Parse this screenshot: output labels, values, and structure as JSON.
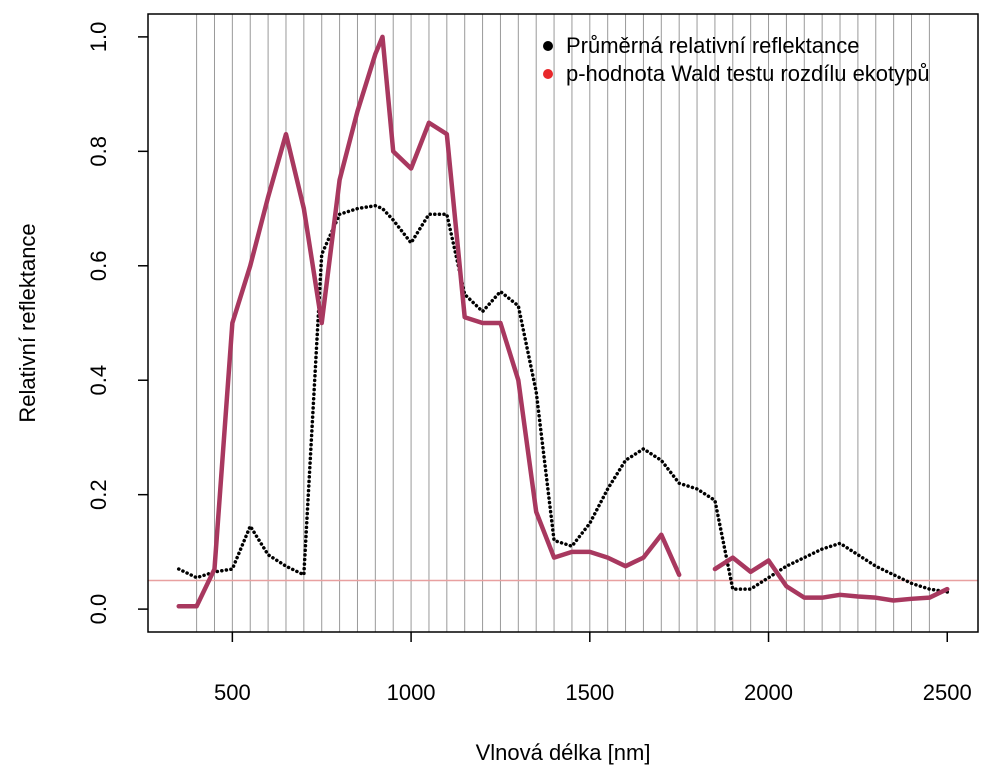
{
  "chart_data": {
    "type": "line",
    "xlabel": "Vlnová délka [nm]",
    "ylabel": "Relativní reflektance",
    "x": [
      350,
      400,
      450,
      500,
      550,
      600,
      650,
      700,
      750,
      800,
      850,
      900,
      920,
      950,
      1000,
      1050,
      1100,
      1150,
      1200,
      1250,
      1300,
      1350,
      1400,
      1450,
      1500,
      1550,
      1600,
      1650,
      1700,
      1750,
      1800,
      1850,
      1900,
      1950,
      2000,
      2050,
      2100,
      2150,
      2200,
      2250,
      2300,
      2350,
      2400,
      2450,
      2500
    ],
    "series": [
      {
        "name": "Průměrná relativní reflektance",
        "color": "#000000",
        "legend_color": "#000000",
        "values": [
          0.07,
          0.055,
          0.065,
          0.07,
          0.145,
          0.095,
          0.075,
          0.06,
          0.62,
          0.69,
          0.7,
          0.705,
          0.7,
          0.68,
          0.64,
          0.69,
          0.69,
          0.55,
          0.52,
          0.555,
          0.53,
          0.38,
          0.12,
          0.11,
          0.15,
          0.21,
          0.26,
          0.28,
          0.26,
          0.22,
          0.21,
          0.19,
          0.035,
          0.035,
          0.055,
          0.075,
          0.09,
          0.105,
          0.115,
          0.095,
          0.075,
          0.06,
          0.045,
          0.035,
          0.03
        ]
      },
      {
        "name": "p-hodnota Wald testu rozdílu ekotypů",
        "color": "#a8385f",
        "legend_color": "#e8282b",
        "values": [
          0.005,
          0.005,
          0.07,
          0.5,
          0.6,
          0.72,
          0.83,
          0.7,
          0.5,
          0.75,
          0.87,
          0.97,
          1.0,
          0.8,
          0.77,
          0.85,
          0.83,
          0.51,
          0.5,
          0.5,
          0.4,
          0.17,
          0.09,
          0.1,
          0.1,
          0.09,
          0.075,
          0.09,
          0.13,
          0.06,
          null,
          0.07,
          0.09,
          0.065,
          0.085,
          0.04,
          0.02,
          0.02,
          0.025,
          0.022,
          0.02,
          0.015,
          0.018,
          0.02,
          0.035
        ]
      }
    ],
    "xlim": [
      264,
      2586
    ],
    "ylim": [
      -0.04,
      1.04
    ],
    "xticks": [
      500,
      1000,
      1500,
      2000,
      2500
    ],
    "yticks": [
      {
        "value": 0,
        "label": "0.0"
      },
      0.2,
      0.4,
      0.6,
      0.8,
      {
        "value": 1,
        "label": "1.0"
      }
    ],
    "vlines": [
      400,
      450,
      500,
      550,
      600,
      650,
      700,
      750,
      800,
      850,
      900,
      950,
      1000,
      1050,
      1100,
      1150,
      1200,
      1250,
      1300,
      1350,
      1400,
      1450,
      1500,
      1550,
      1600,
      1650,
      1700,
      1750,
      1800,
      1850,
      1900,
      1950,
      2000,
      2050,
      2100,
      2150,
      2200,
      2250,
      2300,
      2350,
      2400,
      2450
    ],
    "hline": 0.05,
    "hline_color": "#e8a0a0",
    "legend": "top-right"
  }
}
